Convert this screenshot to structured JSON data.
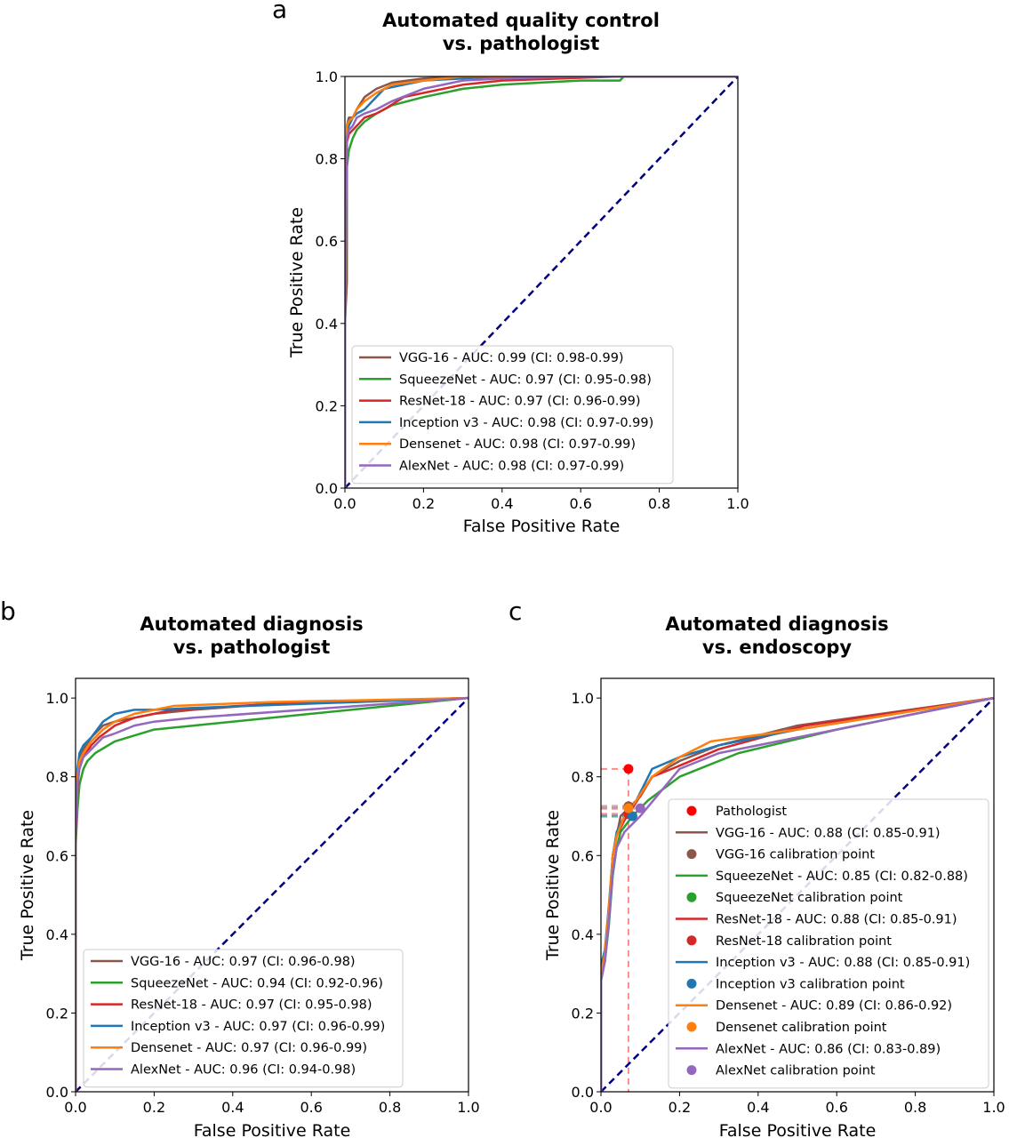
{
  "figure": {
    "panels": [
      {
        "letter": "a",
        "title_line1": "Automated quality control",
        "title_line2": "vs. pathologist"
      },
      {
        "letter": "b",
        "title_line1": "Automated diagnosis",
        "title_line2": "vs. pathologist"
      },
      {
        "letter": "c",
        "title_line1": "Automated diagnosis",
        "title_line2": "vs. endoscopy"
      }
    ]
  },
  "chart_data": [
    {
      "type": "line",
      "title": "Automated quality control\nvs. pathologist",
      "xlabel": "False Positive Rate",
      "ylabel": "True Positive Rate",
      "xlim": [
        0,
        1
      ],
      "ylim": [
        0,
        1
      ],
      "xticks": [
        "0.0",
        "0.2",
        "0.4",
        "0.6",
        "0.8",
        "1.0"
      ],
      "yticks": [
        "0.0",
        "0.2",
        "0.4",
        "0.6",
        "0.8",
        "1.0"
      ],
      "legend_position": "lower-right",
      "series": [
        {
          "name": "VGG-16 - AUC: 0.99 (CI: 0.98-0.99)",
          "color": "#8c564b",
          "x": [
            0,
            0,
            0.005,
            0.005,
            0.01,
            0.02,
            0.03,
            0.05,
            0.08,
            0.12,
            0.2,
            0.3,
            0.5,
            0.7,
            1.0
          ],
          "y": [
            0,
            0.4,
            0.5,
            0.88,
            0.9,
            0.9,
            0.92,
            0.95,
            0.97,
            0.985,
            0.995,
            1.0,
            1.0,
            1.0,
            1.0
          ]
        },
        {
          "name": "SqueezeNet - AUC: 0.97 (CI: 0.95-0.98)",
          "color": "#2ca02c",
          "x": [
            0,
            0,
            0.005,
            0.01,
            0.02,
            0.03,
            0.05,
            0.08,
            0.12,
            0.2,
            0.3,
            0.4,
            0.5,
            0.6,
            0.7,
            0.71,
            1.0
          ],
          "y": [
            0,
            0.35,
            0.78,
            0.82,
            0.85,
            0.87,
            0.89,
            0.91,
            0.93,
            0.95,
            0.97,
            0.98,
            0.985,
            0.99,
            0.99,
            1.0,
            1.0
          ]
        },
        {
          "name": "ResNet-18 - AUC: 0.97 (CI: 0.96-0.99)",
          "color": "#d62728",
          "x": [
            0,
            0,
            0.005,
            0.01,
            0.02,
            0.03,
            0.05,
            0.08,
            0.1,
            0.15,
            0.2,
            0.3,
            0.4,
            0.55,
            0.7,
            1.0
          ],
          "y": [
            0,
            0.38,
            0.84,
            0.86,
            0.87,
            0.88,
            0.9,
            0.91,
            0.92,
            0.95,
            0.96,
            0.98,
            0.99,
            0.995,
            1.0,
            1.0
          ]
        },
        {
          "name": "Inception v3 - AUC: 0.98 (CI: 0.97-0.99)",
          "color": "#1f77b4",
          "x": [
            0,
            0,
            0.005,
            0.01,
            0.02,
            0.03,
            0.05,
            0.07,
            0.1,
            0.15,
            0.2,
            0.3,
            0.4,
            0.6,
            1.0
          ],
          "y": [
            0,
            0.4,
            0.86,
            0.88,
            0.9,
            0.91,
            0.92,
            0.94,
            0.97,
            0.98,
            0.99,
            0.995,
            1.0,
            1.0,
            1.0
          ]
        },
        {
          "name": "Densenet - AUC: 0.98 (CI: 0.97-0.99)",
          "color": "#ff7f0e",
          "x": [
            0,
            0,
            0.005,
            0.01,
            0.02,
            0.03,
            0.05,
            0.08,
            0.12,
            0.2,
            0.3,
            0.5,
            1.0
          ],
          "y": [
            0,
            0.42,
            0.88,
            0.89,
            0.9,
            0.92,
            0.94,
            0.96,
            0.98,
            0.99,
            1.0,
            1.0,
            1.0
          ]
        },
        {
          "name": "AlexNet - AUC: 0.98 (CI: 0.97-0.99)",
          "color": "#9467bd",
          "x": [
            0,
            0,
            0.005,
            0.01,
            0.02,
            0.03,
            0.05,
            0.08,
            0.12,
            0.2,
            0.3,
            0.4,
            0.6,
            1.0
          ],
          "y": [
            0,
            0.4,
            0.85,
            0.87,
            0.88,
            0.9,
            0.91,
            0.92,
            0.94,
            0.97,
            0.99,
            0.995,
            1.0,
            1.0
          ]
        }
      ],
      "diagonal": {
        "x": [
          0,
          1
        ],
        "y": [
          0,
          1
        ],
        "color": "#000080",
        "style": "dashed"
      }
    },
    {
      "type": "line",
      "title": "Automated diagnosis\nvs. pathologist",
      "xlabel": "False Positive Rate",
      "ylabel": "True Positive Rate",
      "xlim": [
        0,
        1
      ],
      "ylim": [
        0,
        1.05
      ],
      "xticks": [
        "0.0",
        "0.2",
        "0.4",
        "0.6",
        "0.8",
        "1.0"
      ],
      "yticks": [
        "0.0",
        "0.2",
        "0.4",
        "0.6",
        "0.8",
        "1.0"
      ],
      "legend_position": "lower-right",
      "series": [
        {
          "name": "VGG-16 - AUC: 0.97 (CI: 0.96-0.98)",
          "color": "#8c564b",
          "x": [
            0,
            0,
            0.005,
            0.01,
            0.02,
            0.04,
            0.07,
            0.1,
            0.15,
            0.2,
            0.3,
            0.5,
            1.0
          ],
          "y": [
            0,
            0.68,
            0.8,
            0.85,
            0.87,
            0.9,
            0.93,
            0.94,
            0.95,
            0.96,
            0.97,
            0.985,
            1.0
          ]
        },
        {
          "name": "SqueezeNet - AUC: 0.94 (CI: 0.92-0.96)",
          "color": "#2ca02c",
          "x": [
            0,
            0,
            0.005,
            0.01,
            0.02,
            0.03,
            0.05,
            0.1,
            0.2,
            1.0
          ],
          "y": [
            0,
            0.62,
            0.72,
            0.78,
            0.82,
            0.84,
            0.86,
            0.89,
            0.92,
            1.0
          ]
        },
        {
          "name": "ResNet-18 - AUC: 0.97 (CI: 0.95-0.98)",
          "color": "#d62728",
          "x": [
            0,
            0,
            0.005,
            0.01,
            0.02,
            0.04,
            0.06,
            0.1,
            0.15,
            0.25,
            0.5,
            1.0
          ],
          "y": [
            0,
            0.65,
            0.77,
            0.83,
            0.85,
            0.88,
            0.9,
            0.93,
            0.95,
            0.97,
            0.985,
            1.0
          ]
        },
        {
          "name": "Inception v3 - AUC: 0.97 (CI: 0.96-0.99)",
          "color": "#1f77b4",
          "x": [
            0,
            0,
            0.005,
            0.01,
            0.02,
            0.04,
            0.07,
            0.1,
            0.15,
            0.2,
            0.3,
            1.0
          ],
          "y": [
            0,
            0.7,
            0.82,
            0.86,
            0.88,
            0.9,
            0.94,
            0.96,
            0.97,
            0.97,
            0.975,
            1.0
          ]
        },
        {
          "name": "Densenet - AUC: 0.97 (CI: 0.96-0.99)",
          "color": "#ff7f0e",
          "x": [
            0,
            0,
            0.005,
            0.01,
            0.02,
            0.04,
            0.07,
            0.1,
            0.15,
            0.25,
            0.5,
            1.0
          ],
          "y": [
            0,
            0.68,
            0.8,
            0.84,
            0.86,
            0.89,
            0.92,
            0.94,
            0.96,
            0.98,
            0.99,
            1.0
          ]
        },
        {
          "name": "AlexNet - AUC: 0.96 (CI: 0.94-0.98)",
          "color": "#9467bd",
          "x": [
            0,
            0,
            0.005,
            0.01,
            0.02,
            0.04,
            0.07,
            0.1,
            0.15,
            0.2,
            0.3,
            1.0
          ],
          "y": [
            0,
            0.66,
            0.78,
            0.82,
            0.85,
            0.87,
            0.9,
            0.91,
            0.93,
            0.94,
            0.95,
            1.0
          ]
        }
      ],
      "diagonal": {
        "x": [
          0,
          1
        ],
        "y": [
          0,
          1
        ],
        "color": "#000080",
        "style": "dashed"
      }
    },
    {
      "type": "line",
      "title": "Automated diagnosis\nvs. endoscopy",
      "xlabel": "False Positive Rate",
      "ylabel": "True Positive Rate",
      "xlim": [
        0,
        1
      ],
      "ylim": [
        0,
        1.05
      ],
      "xticks": [
        "0.0",
        "0.2",
        "0.4",
        "0.6",
        "0.8",
        "1.0"
      ],
      "yticks": [
        "0.0",
        "0.2",
        "0.4",
        "0.6",
        "0.8",
        "1.0"
      ],
      "legend_position": "lower-right",
      "pathologist": {
        "name": "Pathologist",
        "x": 0.07,
        "y": 0.82,
        "color": "#ff0000"
      },
      "series": [
        {
          "name": "VGG-16 - AUC: 0.88 (CI: 0.85-0.91)",
          "color": "#8c564b",
          "calibration": {
            "name": "VGG-16 calibration point",
            "x": 0.07,
            "y": 0.725
          },
          "x": [
            0,
            0,
            0.01,
            0.02,
            0.03,
            0.04,
            0.05,
            0.07,
            0.1,
            0.13,
            0.2,
            0.3,
            0.5,
            1.0
          ],
          "y": [
            0,
            0.3,
            0.35,
            0.45,
            0.6,
            0.65,
            0.7,
            0.72,
            0.75,
            0.8,
            0.84,
            0.88,
            0.93,
            1.0
          ]
        },
        {
          "name": "SqueezeNet - AUC: 0.85 (CI: 0.82-0.88)",
          "color": "#2ca02c",
          "calibration": {
            "name": "SqueezeNet calibration point",
            "x": 0.08,
            "y": 0.7
          },
          "x": [
            0,
            0,
            0.01,
            0.02,
            0.03,
            0.04,
            0.05,
            0.08,
            0.12,
            0.2,
            0.35,
            0.6,
            1.0
          ],
          "y": [
            0,
            0.3,
            0.33,
            0.42,
            0.55,
            0.62,
            0.66,
            0.7,
            0.74,
            0.8,
            0.86,
            0.92,
            1.0
          ]
        },
        {
          "name": "ResNet-18 - AUC: 0.88 (CI: 0.85-0.91)",
          "color": "#d62728",
          "calibration": {
            "name": "ResNet-18 calibration point",
            "x": 0.07,
            "y": 0.705
          },
          "x": [
            0,
            0,
            0.01,
            0.02,
            0.03,
            0.04,
            0.06,
            0.08,
            0.13,
            0.18,
            0.3,
            0.52,
            1.0
          ],
          "y": [
            0,
            0.3,
            0.35,
            0.45,
            0.6,
            0.65,
            0.69,
            0.72,
            0.8,
            0.82,
            0.87,
            0.93,
            1.0
          ]
        },
        {
          "name": "Inception v3 - AUC: 0.88 (CI: 0.85-0.91)",
          "color": "#1f77b4",
          "calibration": {
            "name": "Inception v3 calibration point",
            "x": 0.08,
            "y": 0.7
          },
          "x": [
            0,
            0,
            0.01,
            0.02,
            0.03,
            0.04,
            0.06,
            0.09,
            0.13,
            0.2,
            0.3,
            0.5,
            1.0
          ],
          "y": [
            0,
            0.32,
            0.36,
            0.47,
            0.6,
            0.66,
            0.7,
            0.74,
            0.82,
            0.85,
            0.88,
            0.92,
            1.0
          ]
        },
        {
          "name": "Densenet - AUC: 0.89 (CI: 0.86-0.92)",
          "color": "#ff7f0e",
          "calibration": {
            "name": "Densenet calibration point",
            "x": 0.07,
            "y": 0.72
          },
          "x": [
            0,
            0,
            0.01,
            0.02,
            0.03,
            0.04,
            0.06,
            0.09,
            0.13,
            0.2,
            0.28,
            0.5,
            1.0
          ],
          "y": [
            0,
            0.3,
            0.35,
            0.46,
            0.6,
            0.65,
            0.7,
            0.74,
            0.8,
            0.85,
            0.89,
            0.92,
            1.0
          ]
        },
        {
          "name": "AlexNet - AUC: 0.86 (CI: 0.83-0.89)",
          "color": "#9467bd",
          "calibration": {
            "name": "AlexNet calibration point",
            "x": 0.1,
            "y": 0.72
          },
          "x": [
            0,
            0,
            0.01,
            0.02,
            0.03,
            0.04,
            0.06,
            0.1,
            0.15,
            0.2,
            0.3,
            0.6,
            1.0
          ],
          "y": [
            0,
            0.28,
            0.33,
            0.43,
            0.56,
            0.62,
            0.66,
            0.7,
            0.76,
            0.82,
            0.86,
            0.92,
            1.0
          ]
        }
      ],
      "diagonal": {
        "x": [
          0,
          1
        ],
        "y": [
          0,
          1
        ],
        "color": "#000080",
        "style": "dashed"
      }
    }
  ]
}
